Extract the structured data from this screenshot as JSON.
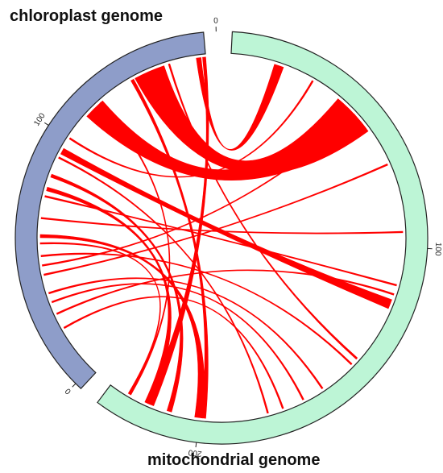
{
  "title_chloroplast": "chloroplast genome",
  "title_mitochondrial": "mitochondrial genome",
  "colors": {
    "chloroplast_track": "#8e9dc9",
    "mitochondrial_track": "#bdf5d6",
    "link": "#ff0000",
    "outline": "#222222"
  },
  "genomes": [
    {
      "id": "chloroplast",
      "label": "chloroplast genome",
      "ticks": [
        {
          "value": 0,
          "label": "0"
        },
        {
          "value": 100,
          "label": "100"
        }
      ]
    },
    {
      "id": "mitochondrial",
      "label": "mitochondrial genome",
      "ticks": [
        {
          "value": 0,
          "label": "0"
        },
        {
          "value": 100,
          "label": "100"
        },
        {
          "value": 200,
          "label": "200"
        }
      ]
    }
  ],
  "links": [
    {
      "from": "chloroplast",
      "to": "mitochondrial",
      "kind": "band"
    },
    {
      "from": "chloroplast",
      "to": "mitochondrial",
      "kind": "band"
    },
    {
      "from": "chloroplast",
      "to": "mitochondrial",
      "kind": "band"
    },
    {
      "from": "chloroplast",
      "to": "mitochondrial",
      "kind": "band"
    },
    {
      "from": "chloroplast",
      "to": "mitochondrial",
      "kind": "band"
    },
    {
      "from": "chloroplast",
      "to": "mitochondrial",
      "kind": "band"
    },
    {
      "from": "chloroplast",
      "to": "mitochondrial",
      "kind": "band"
    },
    {
      "from": "chloroplast",
      "to": "mitochondrial",
      "kind": "band"
    },
    {
      "from": "chloroplast",
      "to": "mitochondrial",
      "kind": "band"
    },
    {
      "from": "chloroplast",
      "to": "mitochondrial",
      "kind": "line"
    },
    {
      "from": "chloroplast",
      "to": "mitochondrial",
      "kind": "line"
    },
    {
      "from": "chloroplast",
      "to": "mitochondrial",
      "kind": "line"
    },
    {
      "from": "chloroplast",
      "to": "mitochondrial",
      "kind": "line"
    },
    {
      "from": "chloroplast",
      "to": "mitochondrial",
      "kind": "line"
    },
    {
      "from": "chloroplast",
      "to": "mitochondrial",
      "kind": "line"
    },
    {
      "from": "chloroplast",
      "to": "mitochondrial",
      "kind": "line"
    },
    {
      "from": "chloroplast",
      "to": "mitochondrial",
      "kind": "line"
    },
    {
      "from": "chloroplast",
      "to": "mitochondrial",
      "kind": "line"
    },
    {
      "from": "chloroplast",
      "to": "mitochondrial",
      "kind": "line"
    },
    {
      "from": "chloroplast",
      "to": "mitochondrial",
      "kind": "line"
    },
    {
      "from": "chloroplast",
      "to": "mitochondrial",
      "kind": "line"
    },
    {
      "from": "chloroplast",
      "to": "mitochondrial",
      "kind": "line"
    },
    {
      "from": "chloroplast",
      "to": "mitochondrial",
      "kind": "line"
    }
  ]
}
